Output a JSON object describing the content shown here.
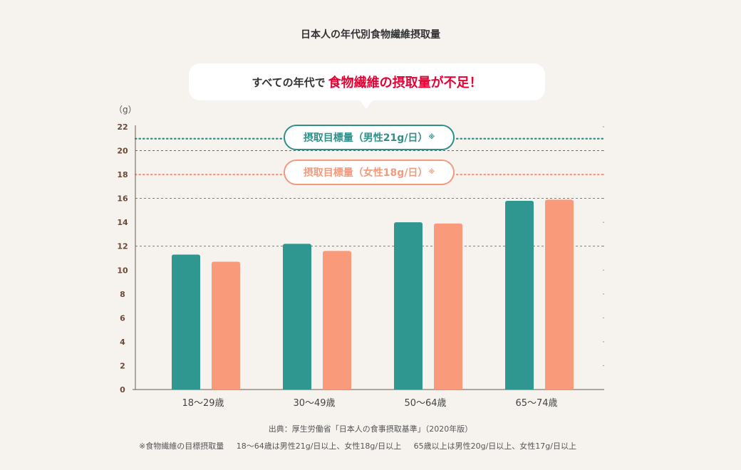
{
  "chart_data": {
    "type": "bar",
    "title": "日本人の年代別食物繊維摂取量",
    "callout": {
      "prefix": "すべての年代で",
      "emphasis": "食物繊維の摂取量が不足！"
    },
    "ylabel": "（g）",
    "ylim": [
      0,
      22
    ],
    "yticks": [
      "0",
      "2",
      "4",
      "6",
      "8",
      "10",
      "12",
      "14",
      "16",
      "18",
      "20",
      "22"
    ],
    "categories": [
      "18〜29歳",
      "30〜49歳",
      "50〜64歳",
      "65〜74歳"
    ],
    "series": [
      {
        "values": [
          11.3,
          12.2,
          14.0,
          15.8
        ],
        "color": "#2f9690"
      },
      {
        "values": [
          10.7,
          11.6,
          13.9,
          15.9
        ],
        "color": "#f99b7b"
      }
    ],
    "targets": [
      {
        "label": "摂取目標量（男性21g/日）",
        "mark": "※",
        "value": 21,
        "color": "#2f8f8a"
      },
      {
        "label": "摂取目標量（女性18g/日）",
        "mark": "※",
        "value": 18,
        "color": "#f39a7e"
      }
    ],
    "dashed_gridlines": [
      12,
      16,
      20
    ],
    "grid": true
  },
  "source": "出典：厚生労働省「日本人の食事摂取基準」（2020年版）",
  "note": {
    "part1": "※食物繊維の目標摂取量",
    "part2": "18〜64歳は男性21g/日以上、女性18g/日以上",
    "part3": "65歳以上は男性20g/日以上、女性17g/日以上"
  }
}
